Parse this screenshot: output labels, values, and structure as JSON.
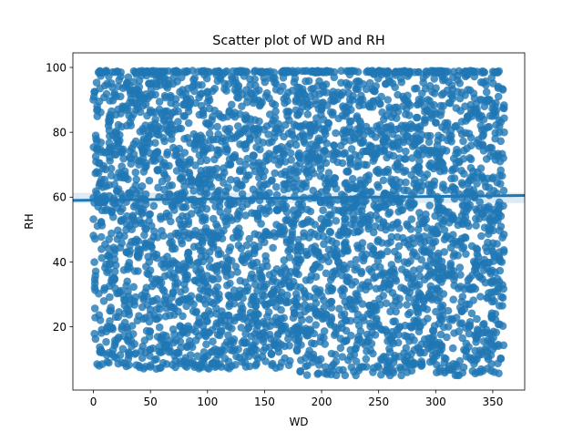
{
  "chart_data": {
    "type": "scatter",
    "title": "Scatter plot of WD and RH",
    "xlabel": "WD",
    "ylabel": "RH",
    "xlim": [
      -18,
      378
    ],
    "ylim": [
      0.5,
      104.5
    ],
    "x_ticks": [
      0,
      50,
      100,
      150,
      200,
      250,
      300,
      350
    ],
    "y_ticks": [
      20,
      40,
      60,
      80,
      100
    ],
    "grid": false,
    "legend": "none",
    "point_color": "#1f77b4",
    "series": [
      {
        "clusters": [
          {
            "x_range": [
              0,
              160
            ],
            "y_range": [
              7,
              98
            ]
          },
          {
            "x_range": [
              160,
              215
            ],
            "y_range": [
              5,
              97
            ]
          },
          {
            "x_range": [
              215,
              285
            ],
            "y_range": [
              5,
              99
            ]
          },
          {
            "x_range": [
              285,
              360
            ],
            "y_range": [
              5,
              98
            ]
          }
        ],
        "saturation_band": {
          "x_range": [
            0,
            360
          ],
          "y": 99
        },
        "sample_points": [
          {
            "x": 0,
            "y": 90
          },
          {
            "x": 2,
            "y": 79
          },
          {
            "x": 3,
            "y": 75
          },
          {
            "x": 5,
            "y": 8
          },
          {
            "x": 8,
            "y": 12
          },
          {
            "x": 12,
            "y": 95
          },
          {
            "x": 20,
            "y": 91
          },
          {
            "x": 25,
            "y": 9
          },
          {
            "x": 32,
            "y": 93
          },
          {
            "x": 40,
            "y": 8
          },
          {
            "x": 55,
            "y": 95
          },
          {
            "x": 62,
            "y": 84
          },
          {
            "x": 68,
            "y": 89
          },
          {
            "x": 80,
            "y": 85
          },
          {
            "x": 82,
            "y": 9
          },
          {
            "x": 95,
            "y": 92
          },
          {
            "x": 100,
            "y": 11
          },
          {
            "x": 108,
            "y": 8
          },
          {
            "x": 115,
            "y": 95
          },
          {
            "x": 130,
            "y": 88
          },
          {
            "x": 150,
            "y": 21
          },
          {
            "x": 160,
            "y": 81
          },
          {
            "x": 165,
            "y": 9
          },
          {
            "x": 170,
            "y": 85
          },
          {
            "x": 178,
            "y": 82
          },
          {
            "x": 190,
            "y": 91
          },
          {
            "x": 200,
            "y": 88
          },
          {
            "x": 205,
            "y": 6
          },
          {
            "x": 210,
            "y": 91
          },
          {
            "x": 230,
            "y": 5
          },
          {
            "x": 245,
            "y": 6
          },
          {
            "x": 260,
            "y": 5
          },
          {
            "x": 275,
            "y": 6
          },
          {
            "x": 288,
            "y": 92
          },
          {
            "x": 290,
            "y": 66
          },
          {
            "x": 300,
            "y": 83
          },
          {
            "x": 310,
            "y": 82
          },
          {
            "x": 318,
            "y": 82
          },
          {
            "x": 330,
            "y": 93
          },
          {
            "x": 332,
            "y": 85
          },
          {
            "x": 345,
            "y": 90
          },
          {
            "x": 350,
            "y": 85
          },
          {
            "x": 355,
            "y": 91
          },
          {
            "x": 360,
            "y": 80
          },
          {
            "x": 352,
            "y": 14
          },
          {
            "x": 358,
            "y": 40
          }
        ]
      }
    ],
    "regression_line": {
      "x_range": [
        -18,
        378
      ],
      "y": [
        59.0,
        60.5
      ]
    }
  }
}
